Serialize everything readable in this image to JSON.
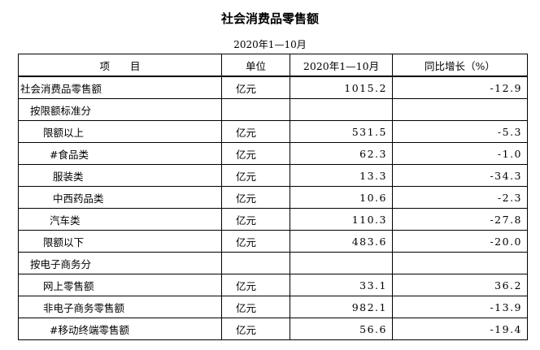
{
  "header": {
    "title": "社会消费品零售额",
    "period": "2020年1—10月"
  },
  "table": {
    "columns": [
      "项　　目",
      "单位",
      "2020年1—10月",
      "同比增长（%）"
    ],
    "rows": [
      [
        "社会消费品零售额",
        "亿元",
        "1015.2",
        "-12.9"
      ],
      [
        "按限额标准分",
        null,
        null,
        null
      ],
      [
        "限额以上",
        "亿元",
        "531.5",
        "-5.3"
      ],
      [
        "#食品类",
        "亿元",
        "62.3",
        "-1.0"
      ],
      [
        "服装类",
        "亿元",
        "13.3",
        "-34.3"
      ],
      [
        "中西药品类",
        "亿元",
        "10.6",
        "-2.3"
      ],
      [
        "汽车类",
        "亿元",
        "110.3",
        "-27.8"
      ],
      [
        "限额以下",
        "亿元",
        "483.6",
        "-20.0"
      ],
      [
        "按电子商务分",
        null,
        null,
        null
      ],
      [
        "网上零售额",
        "亿元",
        "33.1",
        "36.2"
      ],
      [
        "非电子商务零售额",
        "亿元",
        "982.1",
        "-13.9"
      ],
      [
        "#移动终端零售额",
        "亿元",
        "56.6",
        "-19.4"
      ]
    ]
  }
}
